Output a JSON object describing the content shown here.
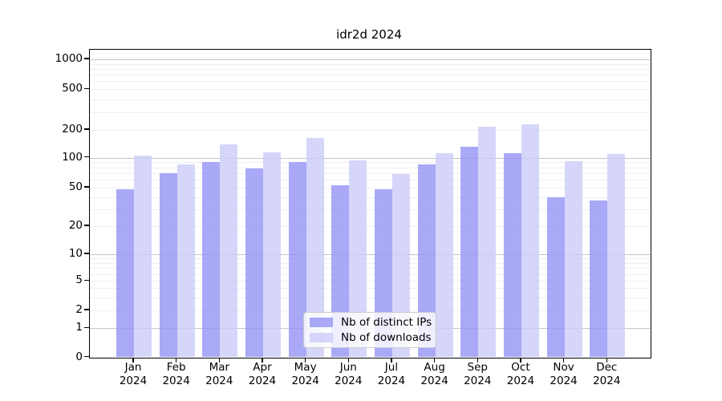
{
  "chart_data": {
    "type": "bar",
    "title": "idr2d 2024",
    "categories": [
      "Jan",
      "Feb",
      "Mar",
      "Apr",
      "May",
      "Jun",
      "Jul",
      "Aug",
      "Sep",
      "Oct",
      "Nov",
      "Dec"
    ],
    "xtick_second_line": "2024",
    "series": [
      {
        "name": "Nb of distinct IPs",
        "color": "#9494f5",
        "values": [
          48,
          70,
          90,
          78,
          90,
          53,
          48,
          86,
          130,
          112,
          40,
          37
        ]
      },
      {
        "name": "Nb of downloads",
        "color": "#ccccf9",
        "values": [
          105,
          85,
          140,
          115,
          165,
          93,
          68,
          112,
          215,
          225,
          92,
          110
        ]
      }
    ],
    "yscale": "log",
    "ytick_values": [
      0,
      1,
      2,
      5,
      10,
      20,
      50,
      100,
      200,
      500,
      1000
    ],
    "ytick_labels": [
      "0",
      "1",
      "2",
      "5",
      "10",
      "20",
      "50",
      "100",
      "200",
      "500",
      "1000"
    ],
    "ylim": [
      0,
      1265
    ],
    "grid": true,
    "major_grid_values": [
      1,
      10,
      100,
      1000
    ],
    "minor_grid_values": [
      2,
      3,
      4,
      5,
      6,
      7,
      8,
      9,
      20,
      30,
      40,
      50,
      60,
      70,
      80,
      90,
      200,
      300,
      400,
      500,
      600,
      700,
      800,
      900
    ],
    "legend_position": "lower center",
    "legend_entries": [
      "Nb of distinct IPs",
      "Nb of downloads"
    ]
  },
  "colors": {
    "ips_bar": "#9494f5",
    "downloads_bar": "#ccccf9",
    "major_grid": "#c6c6c6",
    "minor_grid": "#efefef",
    "axis": "#000000",
    "legend_border": "#cccccc"
  }
}
